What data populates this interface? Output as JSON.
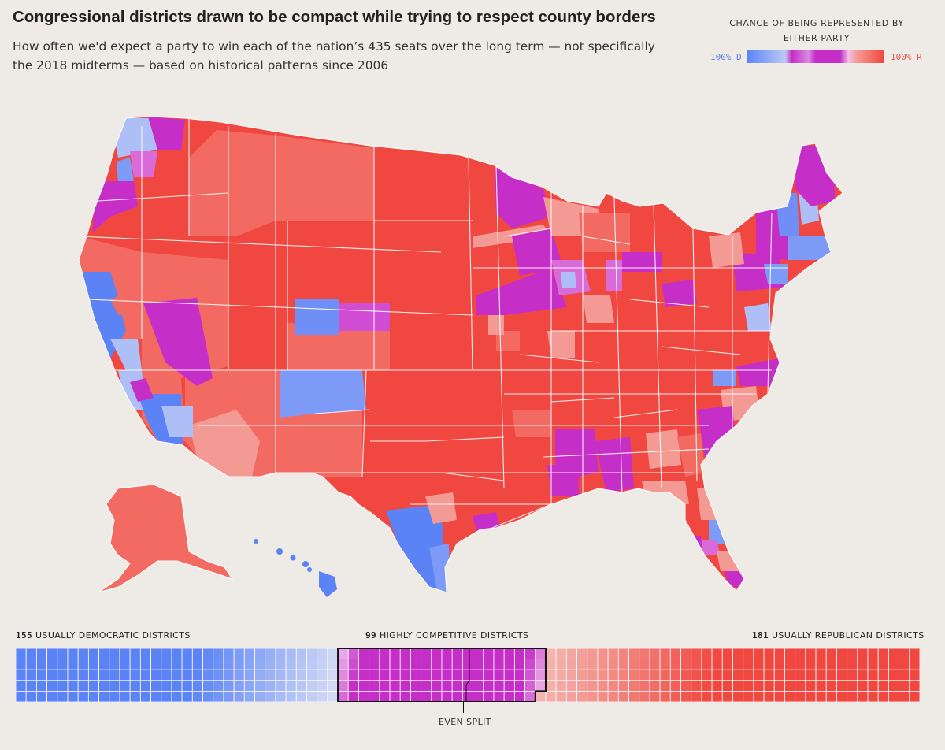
{
  "title": "Congressional districts drawn to be compact while trying to respect county borders",
  "subtitle": "How often we'd expect a party to win each of the nation’s 435 seats over the long term — not specifically the 2018 midterms — based on historical patterns since 2006",
  "legend": {
    "title_line1": "CHANCE OF BEING REPRESENTED BY",
    "title_line2": "EITHER PARTY",
    "dem_label": "100% D",
    "rep_label": "100% R"
  },
  "colors": {
    "dem_strong": "#5b83f6",
    "dem_light": "#aebff7",
    "competitive": "#c62ec8",
    "competitive_light": "#d96bd9",
    "rep_light": "#f49a94",
    "rep_mid": "#f26a62",
    "rep_strong": "#f04840",
    "background": "#eeebe7"
  },
  "counts": {
    "dem_number": "155",
    "dem_text": "USUALLY DEMOCRATIC DISTRICTS",
    "comp_number": "99",
    "comp_text": "HIGHLY COMPETITIVE DISTRICTS",
    "rep_number": "181",
    "rep_text": "USUALLY REPUBLICAN DISTRICTS",
    "even_split": "EVEN SPLIT"
  },
  "waffle": {
    "total": 435,
    "dem": 155,
    "competitive": 99,
    "rep": 181,
    "columns": 87,
    "rows": 5
  }
}
